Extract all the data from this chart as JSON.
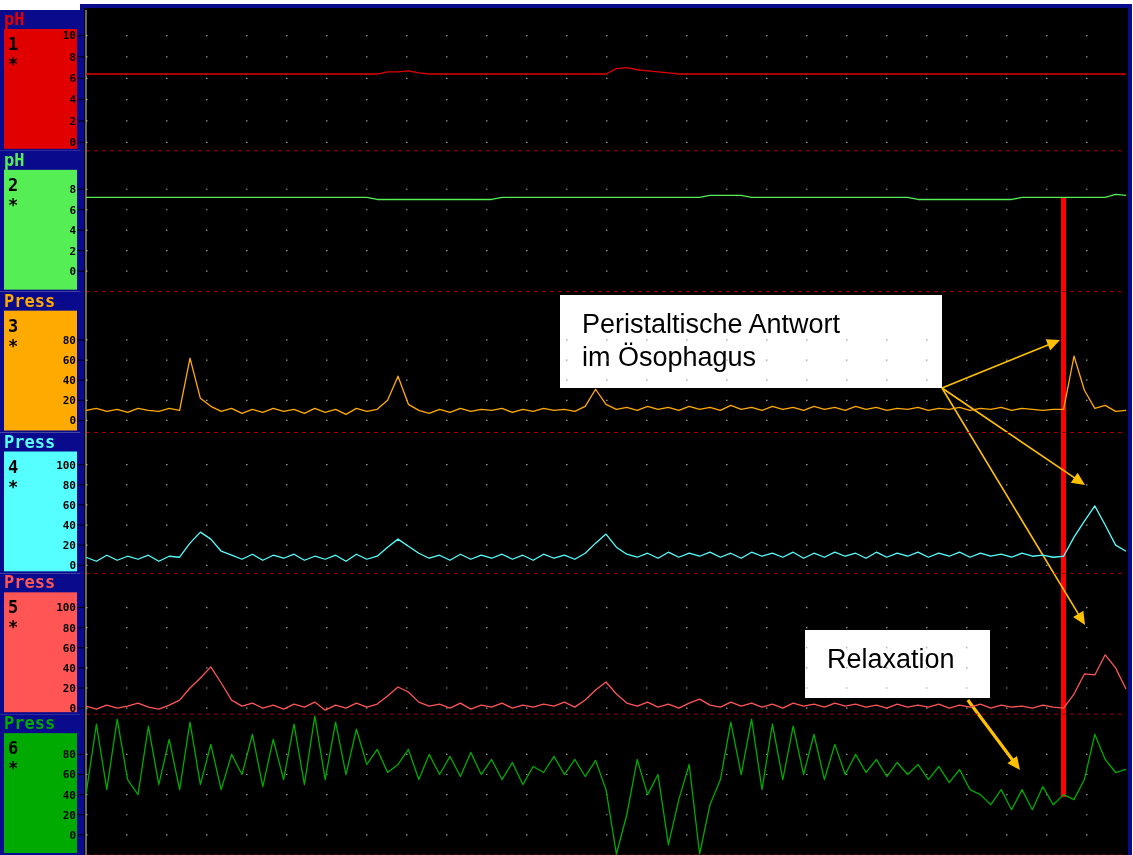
{
  "chart_data": [
    {
      "type": "line",
      "ylabel": "pH",
      "title": "1",
      "subtitle": "*",
      "categories": [
        null,
        null,
        null,
        null,
        null,
        null,
        null,
        null,
        null,
        null,
        null,
        null,
        null,
        null,
        null,
        null,
        null,
        null,
        null,
        null,
        null,
        null,
        null,
        null,
        null,
        null,
        null,
        null,
        null,
        null,
        null,
        null,
        null,
        null,
        null,
        null,
        null,
        null,
        null,
        null,
        null,
        null,
        null,
        null,
        null,
        null,
        null,
        null,
        null,
        null,
        null,
        null,
        null,
        null,
        null,
        null,
        null,
        null,
        null,
        null,
        null,
        null,
        null,
        null,
        null,
        null,
        null,
        null,
        null,
        null,
        null,
        null,
        null,
        null,
        null,
        null,
        null,
        null,
        null,
        null,
        null,
        null,
        null,
        null,
        null,
        null,
        null,
        null,
        null,
        null,
        null,
        null,
        null,
        null,
        null,
        null,
        null,
        null,
        null,
        null,
        null
      ],
      "ylim": [
        -0.8,
        12.4
      ],
      "yticks": [
        0,
        2,
        4,
        6,
        8,
        10
      ],
      "grid": "y",
      "tick_labels": "y",
      "series": [
        {
          "color": "#e00000",
          "values": [
            6.4,
            6.4,
            6.4,
            6.4,
            6.4,
            6.4,
            6.4,
            6.4,
            6.4,
            6.4,
            6.4,
            6.4,
            6.4,
            6.4,
            6.4,
            6.4,
            6.4,
            6.4,
            6.4,
            6.4,
            6.4,
            6.4,
            6.4,
            6.4,
            6.4,
            6.4,
            6.4,
            6.4,
            6.4,
            6.6,
            6.6,
            6.7,
            6.5,
            6.4,
            6.4,
            6.4,
            6.4,
            6.4,
            6.4,
            6.4,
            6.4,
            6.4,
            6.4,
            6.4,
            6.4,
            6.4,
            6.4,
            6.4,
            6.4,
            6.4,
            6.4,
            6.9,
            7.0,
            6.8,
            6.7,
            6.6,
            6.5,
            6.4,
            6.4,
            6.4,
            6.4,
            6.4,
            6.4,
            6.4,
            6.4,
            6.4,
            6.4,
            6.4,
            6.4,
            6.4,
            6.4,
            6.4,
            6.4,
            6.4,
            6.4,
            6.4,
            6.4,
            6.4,
            6.4,
            6.4,
            6.4,
            6.4,
            6.4,
            6.4,
            6.4,
            6.4,
            6.4,
            6.4,
            6.4,
            6.4,
            6.4,
            6.4,
            6.4,
            6.4,
            6.4,
            6.4,
            6.4,
            6.4,
            6.4,
            6.4,
            6.4
          ]
        }
      ]
    },
    {
      "type": "line",
      "ylabel": "pH",
      "title": "2",
      "subtitle": "*",
      "categories": [
        null,
        null,
        null,
        null,
        null,
        null,
        null,
        null,
        null,
        null,
        null,
        null,
        null,
        null,
        null,
        null,
        null,
        null,
        null,
        null,
        null,
        null,
        null,
        null,
        null,
        null,
        null,
        null,
        null,
        null,
        null,
        null,
        null,
        null,
        null,
        null,
        null,
        null,
        null,
        null,
        null,
        null,
        null,
        null,
        null,
        null,
        null,
        null,
        null,
        null,
        null,
        null,
        null,
        null,
        null,
        null,
        null,
        null,
        null,
        null,
        null,
        null,
        null,
        null,
        null,
        null,
        null,
        null,
        null,
        null,
        null,
        null,
        null,
        null,
        null,
        null,
        null,
        null,
        null,
        null,
        null,
        null,
        null,
        null,
        null,
        null,
        null,
        null,
        null,
        null,
        null,
        null,
        null,
        null,
        null,
        null,
        null,
        null,
        null,
        null,
        null
      ],
      "ylim": [
        -2,
        11.75
      ],
      "yticks": [
        0,
        2,
        4,
        6,
        8
      ],
      "grid": "y",
      "tick_labels": "y",
      "series": [
        {
          "color": "#55ee55",
          "values": [
            7.2,
            7.2,
            7.2,
            7.2,
            7.2,
            7.2,
            7.2,
            7.2,
            7.2,
            7.2,
            7.2,
            7.2,
            7.2,
            7.2,
            7.2,
            7.2,
            7.2,
            7.2,
            7.2,
            7.2,
            7.2,
            7.2,
            7.2,
            7.2,
            7.2,
            7.2,
            7.2,
            7.2,
            7.0,
            7.0,
            7.0,
            7.0,
            7.0,
            7.0,
            7.0,
            7.0,
            7.0,
            7.0,
            7.0,
            7.0,
            7.2,
            7.2,
            7.2,
            7.2,
            7.2,
            7.2,
            7.2,
            7.2,
            7.2,
            7.2,
            7.2,
            7.2,
            7.2,
            7.2,
            7.2,
            7.2,
            7.2,
            7.2,
            7.2,
            7.2,
            7.4,
            7.4,
            7.4,
            7.4,
            7.2,
            7.2,
            7.2,
            7.2,
            7.2,
            7.2,
            7.2,
            7.2,
            7.2,
            7.2,
            7.2,
            7.2,
            7.2,
            7.2,
            7.2,
            7.2,
            7.0,
            7.0,
            7.0,
            7.0,
            7.0,
            7.0,
            7.0,
            7.0,
            7.0,
            7.0,
            7.2,
            7.2,
            7.2,
            7.2,
            7.2,
            7.2,
            7.2,
            7.2,
            7.2,
            7.5,
            7.4
          ]
        }
      ]
    },
    {
      "type": "line",
      "ylabel": "Press",
      "title": "3",
      "subtitle": "*",
      "categories": [
        null,
        null,
        null,
        null,
        null,
        null,
        null,
        null,
        null,
        null,
        null,
        null,
        null,
        null,
        null,
        null,
        null,
        null,
        null,
        null,
        null,
        null,
        null,
        null,
        null,
        null,
        null,
        null,
        null,
        null,
        null,
        null,
        null,
        null,
        null,
        null,
        null,
        null,
        null,
        null,
        null,
        null,
        null,
        null,
        null,
        null,
        null,
        null,
        null,
        null,
        null,
        null,
        null,
        null,
        null,
        null,
        null,
        null,
        null,
        null,
        null,
        null,
        null,
        null,
        null,
        null,
        null,
        null,
        null,
        null,
        null,
        null,
        null,
        null,
        null,
        null,
        null,
        null,
        null,
        null,
        null,
        null,
        null,
        null,
        null,
        null,
        null,
        null,
        null,
        null,
        null,
        null,
        null,
        null,
        null,
        null,
        null,
        null,
        null,
        null,
        null
      ],
      "ylim": [
        -12,
        128
      ],
      "yticks": [
        0,
        20,
        40,
        60,
        80
      ],
      "grid": "y",
      "tick_labels": "y",
      "annotations": [
        "Peristaltische Antwort\nim Ösophagus"
      ],
      "series": [
        {
          "color": "#ffaa00",
          "values": [
            10,
            12,
            9,
            11,
            8,
            12,
            10,
            9,
            12,
            10,
            62,
            22,
            14,
            9,
            12,
            7,
            11,
            8,
            12,
            9,
            11,
            7,
            12,
            8,
            11,
            6,
            12,
            9,
            11,
            20,
            44,
            16,
            10,
            7,
            11,
            8,
            12,
            9,
            11,
            10,
            12,
            8,
            11,
            9,
            12,
            10,
            11,
            9,
            14,
            31,
            16,
            11,
            13,
            10,
            14,
            11,
            13,
            10,
            14,
            11,
            13,
            10,
            15,
            11,
            13,
            10,
            14,
            11,
            13,
            10,
            14,
            11,
            13,
            10,
            14,
            11,
            13,
            10,
            12,
            11,
            13,
            10,
            12,
            11,
            13,
            10,
            12,
            11,
            13,
            10,
            12,
            11,
            10,
            11,
            11,
            64,
            30,
            12,
            15,
            9,
            10
          ]
        }
      ]
    },
    {
      "type": "line",
      "ylabel": "Press",
      "title": "4",
      "subtitle": "*",
      "categories": [
        null,
        null,
        null,
        null,
        null,
        null,
        null,
        null,
        null,
        null,
        null,
        null,
        null,
        null,
        null,
        null,
        null,
        null,
        null,
        null,
        null,
        null,
        null,
        null,
        null,
        null,
        null,
        null,
        null,
        null,
        null,
        null,
        null,
        null,
        null,
        null,
        null,
        null,
        null,
        null,
        null,
        null,
        null,
        null,
        null,
        null,
        null,
        null,
        null,
        null,
        null,
        null,
        null,
        null,
        null,
        null,
        null,
        null,
        null,
        null,
        null,
        null,
        null,
        null,
        null,
        null,
        null,
        null,
        null,
        null,
        null,
        null,
        null,
        null,
        null,
        null,
        null,
        null,
        null,
        null,
        null,
        null,
        null,
        null,
        null,
        null,
        null,
        null,
        null,
        null,
        null,
        null,
        null,
        null,
        null,
        null,
        null,
        null,
        null,
        null,
        null
      ],
      "ylim": [
        -8,
        132
      ],
      "yticks": [
        0,
        20,
        40,
        60,
        80,
        100
      ],
      "grid": "y",
      "tick_labels": "y",
      "series": [
        {
          "color": "#55ffff",
          "values": [
            8,
            4,
            10,
            5,
            9,
            6,
            10,
            4,
            9,
            8,
            22,
            33,
            26,
            14,
            10,
            6,
            11,
            5,
            10,
            7,
            11,
            5,
            9,
            6,
            10,
            4,
            11,
            6,
            9,
            18,
            26,
            19,
            12,
            7,
            10,
            5,
            11,
            6,
            10,
            7,
            11,
            6,
            10,
            5,
            11,
            7,
            10,
            6,
            12,
            22,
            31,
            18,
            11,
            8,
            12,
            7,
            13,
            8,
            12,
            9,
            13,
            8,
            12,
            7,
            13,
            9,
            12,
            8,
            13,
            7,
            12,
            8,
            13,
            9,
            12,
            7,
            13,
            8,
            12,
            9,
            13,
            8,
            12,
            9,
            13,
            8,
            12,
            9,
            11,
            8,
            12,
            9,
            10,
            8,
            9,
            28,
            44,
            59,
            40,
            20,
            14
          ]
        }
      ]
    },
    {
      "type": "line",
      "ylabel": "Press",
      "title": "5",
      "subtitle": "*",
      "categories": [
        null,
        null,
        null,
        null,
        null,
        null,
        null,
        null,
        null,
        null,
        null,
        null,
        null,
        null,
        null,
        null,
        null,
        null,
        null,
        null,
        null,
        null,
        null,
        null,
        null,
        null,
        null,
        null,
        null,
        null,
        null,
        null,
        null,
        null,
        null,
        null,
        null,
        null,
        null,
        null,
        null,
        null,
        null,
        null,
        null,
        null,
        null,
        null,
        null,
        null,
        null,
        null,
        null,
        null,
        null,
        null,
        null,
        null,
        null,
        null,
        null,
        null,
        null,
        null,
        null,
        null,
        null,
        null,
        null,
        null,
        null,
        null,
        null,
        null,
        null,
        null,
        null,
        null,
        null,
        null,
        null,
        null,
        null,
        null,
        null,
        null,
        null,
        null,
        null,
        null,
        null,
        null,
        null,
        null,
        null,
        null,
        null,
        null,
        null,
        null,
        null
      ],
      "ylim": [
        -6,
        134
      ],
      "yticks": [
        0,
        20,
        40,
        60,
        80,
        100
      ],
      "grid": "y",
      "tick_labels": "y",
      "series": [
        {
          "color": "#ff5555",
          "values": [
            2,
            -1,
            3,
            0,
            2,
            5,
            1,
            -1,
            3,
            8,
            20,
            30,
            41,
            25,
            8,
            2,
            5,
            0,
            3,
            -1,
            4,
            1,
            6,
            -2,
            3,
            0,
            5,
            1,
            4,
            12,
            21,
            16,
            6,
            2,
            4,
            0,
            5,
            -1,
            3,
            1,
            5,
            0,
            3,
            1,
            4,
            2,
            6,
            1,
            8,
            18,
            26,
            14,
            5,
            2,
            6,
            1,
            4,
            0,
            5,
            9,
            3,
            1,
            6,
            2,
            5,
            1,
            4,
            0,
            5,
            2,
            4,
            1,
            5,
            2,
            4,
            1,
            3,
            0,
            4,
            1,
            3,
            1,
            4,
            0,
            3,
            1,
            4,
            0,
            3,
            1,
            2,
            0,
            3,
            1,
            0,
            14,
            34,
            33,
            53,
            40,
            19
          ]
        }
      ]
    },
    {
      "type": "line",
      "ylabel": "Press",
      "title": "6",
      "subtitle": "*",
      "categories": [
        null,
        null,
        null,
        null,
        null,
        null,
        null,
        null,
        null,
        null,
        null,
        null,
        null,
        null,
        null,
        null,
        null,
        null,
        null,
        null,
        null,
        null,
        null,
        null,
        null,
        null,
        null,
        null,
        null,
        null,
        null,
        null,
        null,
        null,
        null,
        null,
        null,
        null,
        null,
        null,
        null,
        null,
        null,
        null,
        null,
        null,
        null,
        null,
        null,
        null,
        null,
        null,
        null,
        null,
        null,
        null,
        null,
        null,
        null,
        null,
        null,
        null,
        null,
        null,
        null,
        null,
        null,
        null,
        null,
        null,
        null,
        null,
        null,
        null,
        null,
        null,
        null,
        null,
        null,
        null,
        null,
        null,
        null,
        null,
        null,
        null,
        null,
        null,
        null,
        null,
        null,
        null,
        null,
        null,
        null,
        null,
        null,
        null,
        null,
        null,
        null
      ],
      "ylim": [
        -20,
        120
      ],
      "yticks": [
        0,
        20,
        40,
        60,
        80
      ],
      "grid": "y",
      "tick_labels": "y",
      "annotations": [
        "Relaxation"
      ],
      "series": [
        {
          "color": "#00aa00",
          "values": [
            40,
            110,
            45,
            115,
            55,
            40,
            108,
            50,
            95,
            45,
            112,
            50,
            90,
            45,
            80,
            60,
            100,
            48,
            95,
            55,
            110,
            50,
            118,
            55,
            112,
            60,
            105,
            70,
            85,
            62,
            70,
            85,
            55,
            80,
            60,
            78,
            58,
            82,
            60,
            75,
            55,
            72,
            50,
            68,
            62,
            78,
            60,
            75,
            58,
            74,
            45,
            -19,
            20,
            75,
            40,
            60,
            -10,
            35,
            70,
            -19,
            30,
            55,
            112,
            60,
            115,
            45,
            110,
            55,
            108,
            60,
            100,
            55,
            90,
            60,
            80,
            62,
            75,
            58,
            72,
            60,
            70,
            55,
            68,
            52,
            65,
            45,
            40,
            30,
            45,
            25,
            45,
            25,
            48,
            30,
            40,
            35,
            55,
            100,
            75,
            62,
            65
          ]
        }
      ]
    }
  ]
}
